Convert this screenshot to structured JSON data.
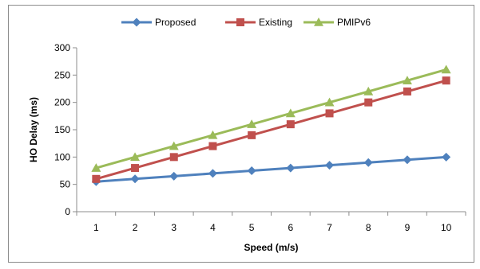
{
  "chart_data": {
    "type": "line",
    "title": "",
    "xlabel": "Speed (m/s)",
    "ylabel": "HO Delay (ms)",
    "x": [
      1,
      2,
      3,
      4,
      5,
      6,
      7,
      8,
      9,
      10
    ],
    "ylim": [
      0,
      300
    ],
    "yticks": [
      0,
      50,
      100,
      150,
      200,
      250,
      300
    ],
    "grid": false,
    "legend_position": "top",
    "series": [
      {
        "name": "Proposed",
        "color": "#4F81BD",
        "marker": "diamond",
        "values": [
          55,
          60,
          65,
          70,
          75,
          80,
          85,
          90,
          95,
          100
        ]
      },
      {
        "name": "Existing",
        "color": "#C0504D",
        "marker": "square",
        "values": [
          60,
          80,
          100,
          120,
          140,
          160,
          180,
          200,
          220,
          240
        ]
      },
      {
        "name": "PMIPv6",
        "color": "#9BBB59",
        "marker": "triangle",
        "values": [
          80,
          100,
          120,
          140,
          160,
          180,
          200,
          220,
          240,
          260
        ]
      }
    ]
  }
}
